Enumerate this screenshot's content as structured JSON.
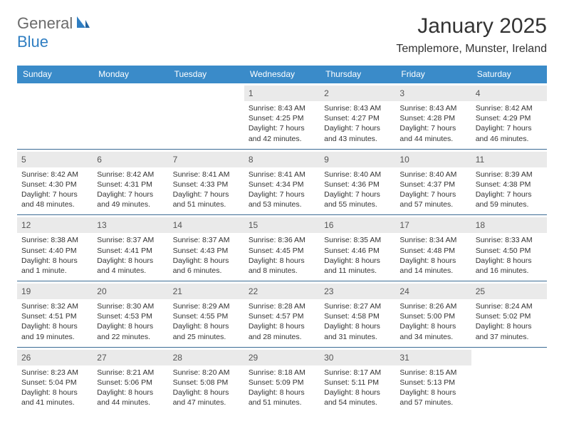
{
  "brand": {
    "part1": "General",
    "part2": "Blue"
  },
  "title": "January 2025",
  "location": "Templemore, Munster, Ireland",
  "colors": {
    "header_bar": "#3a8bc9",
    "week_divider": "#3a6b94",
    "daynum_bg": "#eaeaea",
    "brand_accent": "#2f7ec2",
    "brand_gray": "#6b6b6b"
  },
  "weekdays": [
    "Sunday",
    "Monday",
    "Tuesday",
    "Wednesday",
    "Thursday",
    "Friday",
    "Saturday"
  ],
  "weeks": [
    [
      null,
      null,
      null,
      {
        "n": "1",
        "sr": "8:43 AM",
        "ss": "4:25 PM",
        "d": "7 hours and 42 minutes."
      },
      {
        "n": "2",
        "sr": "8:43 AM",
        "ss": "4:27 PM",
        "d": "7 hours and 43 minutes."
      },
      {
        "n": "3",
        "sr": "8:43 AM",
        "ss": "4:28 PM",
        "d": "7 hours and 44 minutes."
      },
      {
        "n": "4",
        "sr": "8:42 AM",
        "ss": "4:29 PM",
        "d": "7 hours and 46 minutes."
      }
    ],
    [
      {
        "n": "5",
        "sr": "8:42 AM",
        "ss": "4:30 PM",
        "d": "7 hours and 48 minutes."
      },
      {
        "n": "6",
        "sr": "8:42 AM",
        "ss": "4:31 PM",
        "d": "7 hours and 49 minutes."
      },
      {
        "n": "7",
        "sr": "8:41 AM",
        "ss": "4:33 PM",
        "d": "7 hours and 51 minutes."
      },
      {
        "n": "8",
        "sr": "8:41 AM",
        "ss": "4:34 PM",
        "d": "7 hours and 53 minutes."
      },
      {
        "n": "9",
        "sr": "8:40 AM",
        "ss": "4:36 PM",
        "d": "7 hours and 55 minutes."
      },
      {
        "n": "10",
        "sr": "8:40 AM",
        "ss": "4:37 PM",
        "d": "7 hours and 57 minutes."
      },
      {
        "n": "11",
        "sr": "8:39 AM",
        "ss": "4:38 PM",
        "d": "7 hours and 59 minutes."
      }
    ],
    [
      {
        "n": "12",
        "sr": "8:38 AM",
        "ss": "4:40 PM",
        "d": "8 hours and 1 minute."
      },
      {
        "n": "13",
        "sr": "8:37 AM",
        "ss": "4:41 PM",
        "d": "8 hours and 4 minutes."
      },
      {
        "n": "14",
        "sr": "8:37 AM",
        "ss": "4:43 PM",
        "d": "8 hours and 6 minutes."
      },
      {
        "n": "15",
        "sr": "8:36 AM",
        "ss": "4:45 PM",
        "d": "8 hours and 8 minutes."
      },
      {
        "n": "16",
        "sr": "8:35 AM",
        "ss": "4:46 PM",
        "d": "8 hours and 11 minutes."
      },
      {
        "n": "17",
        "sr": "8:34 AM",
        "ss": "4:48 PM",
        "d": "8 hours and 14 minutes."
      },
      {
        "n": "18",
        "sr": "8:33 AM",
        "ss": "4:50 PM",
        "d": "8 hours and 16 minutes."
      }
    ],
    [
      {
        "n": "19",
        "sr": "8:32 AM",
        "ss": "4:51 PM",
        "d": "8 hours and 19 minutes."
      },
      {
        "n": "20",
        "sr": "8:30 AM",
        "ss": "4:53 PM",
        "d": "8 hours and 22 minutes."
      },
      {
        "n": "21",
        "sr": "8:29 AM",
        "ss": "4:55 PM",
        "d": "8 hours and 25 minutes."
      },
      {
        "n": "22",
        "sr": "8:28 AM",
        "ss": "4:57 PM",
        "d": "8 hours and 28 minutes."
      },
      {
        "n": "23",
        "sr": "8:27 AM",
        "ss": "4:58 PM",
        "d": "8 hours and 31 minutes."
      },
      {
        "n": "24",
        "sr": "8:26 AM",
        "ss": "5:00 PM",
        "d": "8 hours and 34 minutes."
      },
      {
        "n": "25",
        "sr": "8:24 AM",
        "ss": "5:02 PM",
        "d": "8 hours and 37 minutes."
      }
    ],
    [
      {
        "n": "26",
        "sr": "8:23 AM",
        "ss": "5:04 PM",
        "d": "8 hours and 41 minutes."
      },
      {
        "n": "27",
        "sr": "8:21 AM",
        "ss": "5:06 PM",
        "d": "8 hours and 44 minutes."
      },
      {
        "n": "28",
        "sr": "8:20 AM",
        "ss": "5:08 PM",
        "d": "8 hours and 47 minutes."
      },
      {
        "n": "29",
        "sr": "8:18 AM",
        "ss": "5:09 PM",
        "d": "8 hours and 51 minutes."
      },
      {
        "n": "30",
        "sr": "8:17 AM",
        "ss": "5:11 PM",
        "d": "8 hours and 54 minutes."
      },
      {
        "n": "31",
        "sr": "8:15 AM",
        "ss": "5:13 PM",
        "d": "8 hours and 57 minutes."
      },
      null
    ]
  ],
  "labels": {
    "sunrise": "Sunrise:",
    "sunset": "Sunset:",
    "daylight": "Daylight:"
  }
}
